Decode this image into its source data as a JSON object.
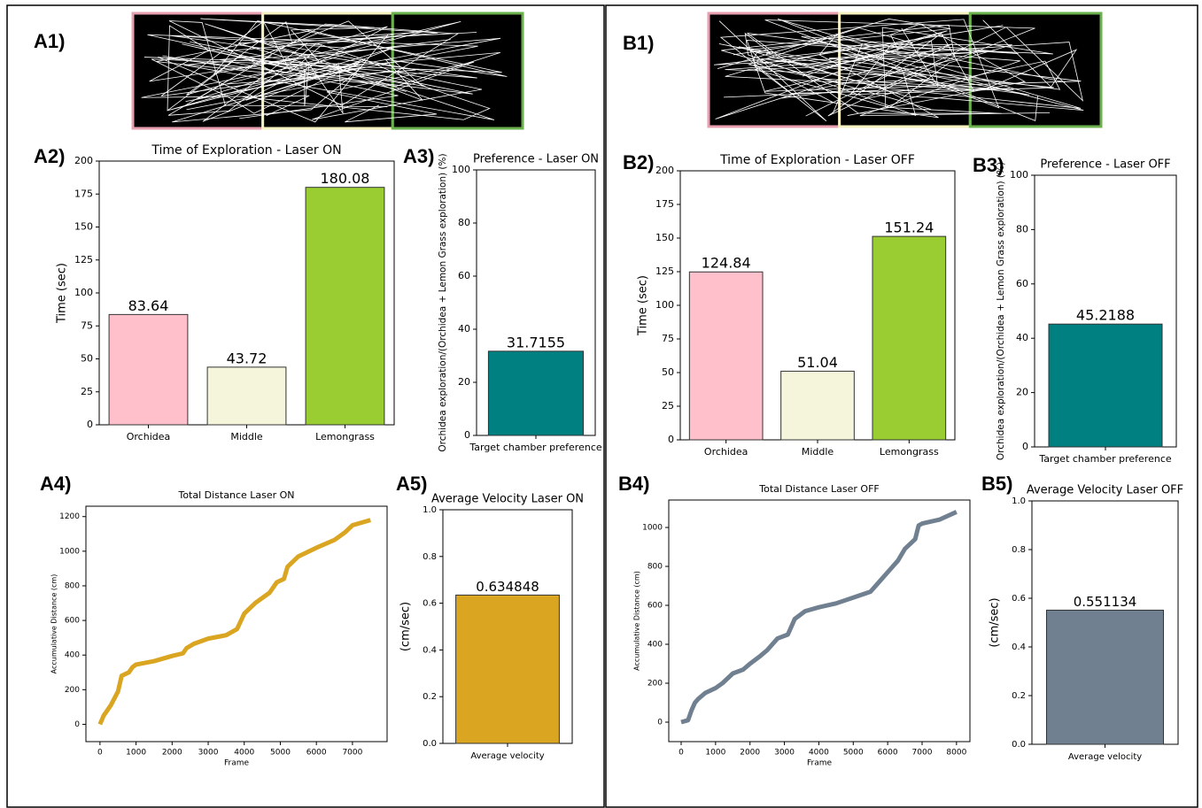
{
  "panel_labels": [
    "A1)",
    "A2)",
    "A3)",
    "A4)",
    "A5)",
    "B1)",
    "B2)",
    "B3)",
    "B4)",
    "B5)"
  ],
  "chart_data": [
    {
      "type": "bar",
      "title": "Time of Exploration - Laser ON",
      "ylabel": "Time (sec)",
      "categories": [
        "Orchidea",
        "Middle",
        "Lemongrass"
      ],
      "values": [
        83.64,
        43.72,
        180.08
      ],
      "colors": [
        "#ffc0cb",
        "#f5f5dc",
        "#9acd32"
      ],
      "ylim": [
        0,
        200
      ],
      "yticks": [
        0,
        25,
        50,
        75,
        100,
        125,
        150,
        175,
        200
      ]
    },
    {
      "type": "bar",
      "title": "Preference - Laser ON",
      "ylabel": "Orchidea exploration/(Orchidea + Lemon Grass exploration) (%)",
      "categories": [
        "Target chamber preference"
      ],
      "values": [
        31.7155
      ],
      "colors": [
        "#008080"
      ],
      "ylim": [
        0,
        100
      ],
      "yticks": [
        0,
        20,
        40,
        60,
        80,
        100
      ]
    },
    {
      "type": "line",
      "title": "Total Distance Laser ON",
      "xlabel": "Frame",
      "ylabel": "Accumulative Distance (cm)",
      "x": [
        0,
        100,
        300,
        500,
        600,
        800,
        900,
        1000,
        1500,
        2000,
        2300,
        2400,
        2600,
        3000,
        3500,
        3800,
        4000,
        4300,
        4700,
        4900,
        5100,
        5200,
        5500,
        6000,
        6500,
        6800,
        7000,
        7500
      ],
      "values": [
        0,
        50,
        110,
        190,
        280,
        300,
        330,
        345,
        365,
        395,
        410,
        440,
        465,
        495,
        515,
        550,
        640,
        700,
        760,
        820,
        840,
        910,
        970,
        1020,
        1065,
        1110,
        1150,
        1180
      ],
      "color": "#daa520",
      "xlim": [
        -390,
        7960
      ],
      "ylim": [
        -100,
        1260
      ],
      "xticks": [
        0,
        1000,
        2000,
        3000,
        4000,
        5000,
        6000,
        7000
      ],
      "yticks": [
        0,
        200,
        400,
        600,
        800,
        1000,
        1200
      ]
    },
    {
      "type": "bar",
      "title": "Average Velocity Laser ON",
      "ylabel": "(cm/sec)",
      "categories": [
        "Average velocity"
      ],
      "values": [
        0.634848
      ],
      "colors": [
        "#daa520"
      ],
      "ylim": [
        0,
        1
      ],
      "yticks": [
        {
          "value": 0,
          "label": "0.0"
        },
        0.2,
        0.4,
        0.6,
        0.8,
        {
          "value": 1,
          "label": "1.0"
        }
      ]
    },
    {
      "type": "bar",
      "title": "Time of Exploration - Laser OFF",
      "ylabel": "Time (sec)",
      "categories": [
        "Orchidea",
        "Middle",
        "Lemongrass"
      ],
      "values": [
        124.84,
        51.04,
        151.24
      ],
      "colors": [
        "#ffc0cb",
        "#f5f5dc",
        "#9acd32"
      ],
      "ylim": [
        0,
        200
      ],
      "yticks": [
        0,
        25,
        50,
        75,
        100,
        125,
        150,
        175,
        200
      ]
    },
    {
      "type": "bar",
      "title": "Preference - Laser OFF",
      "ylabel": "Orchidea exploration/(Orchidea + Lemon Grass exploration) (%)",
      "categories": [
        "Target chamber preference"
      ],
      "values": [
        45.2188
      ],
      "colors": [
        "#008080"
      ],
      "ylim": [
        0,
        100
      ],
      "yticks": [
        0,
        20,
        40,
        60,
        80,
        100
      ]
    },
    {
      "type": "line",
      "title": "Total Distance Laser OFF",
      "xlabel": "Frame",
      "ylabel": "Accumulative Distance (cm)",
      "x": [
        0,
        200,
        300,
        400,
        500,
        700,
        1000,
        1200,
        1500,
        1800,
        2000,
        2300,
        2500,
        2800,
        3100,
        3300,
        3600,
        4000,
        4500,
        5000,
        5500,
        5800,
        6000,
        6300,
        6500,
        6800,
        6900,
        7000,
        7500,
        8000
      ],
      "values": [
        0,
        10,
        60,
        100,
        120,
        150,
        175,
        200,
        250,
        270,
        300,
        340,
        370,
        430,
        450,
        530,
        570,
        590,
        610,
        640,
        670,
        730,
        770,
        830,
        890,
        940,
        1010,
        1020,
        1040,
        1080
      ],
      "color": "#708090",
      "xlim": [
        -360,
        8390
      ],
      "ylim": [
        -100,
        1141
      ],
      "xticks": [
        0,
        1000,
        2000,
        3000,
        4000,
        5000,
        6000,
        7000,
        8000
      ],
      "yticks": [
        0,
        200,
        400,
        600,
        800,
        1000
      ]
    },
    {
      "type": "bar",
      "title": "Average Velocity Laser OFF",
      "ylabel": "(cm/sec)",
      "categories": [
        "Average velocity"
      ],
      "values": [
        0.551134
      ],
      "colors": [
        "#708090"
      ],
      "ylim": [
        0,
        1
      ],
      "yticks": [
        {
          "value": 0,
          "label": "0.0"
        },
        0.2,
        0.4,
        0.6,
        0.8,
        {
          "value": 1,
          "label": "1.0"
        }
      ]
    }
  ]
}
